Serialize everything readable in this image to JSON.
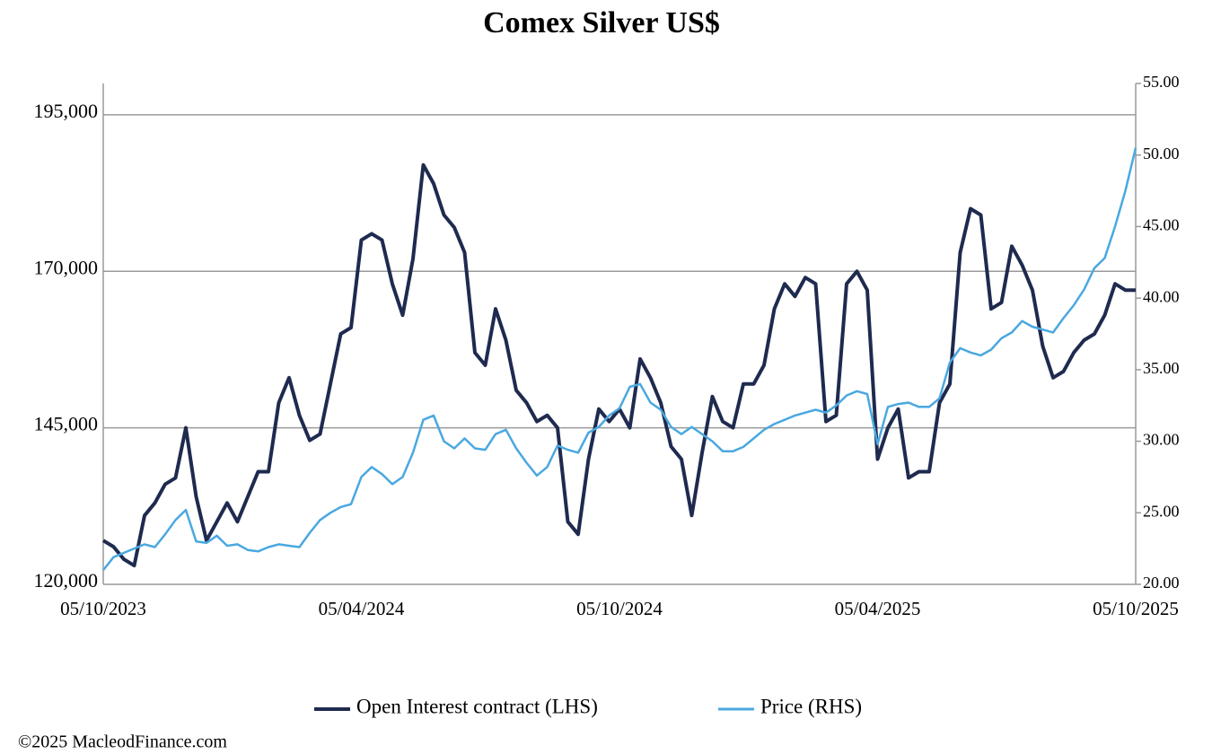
{
  "chart_data": {
    "type": "line",
    "title": "Comex Silver US$",
    "categories": [
      "05/10/2023",
      null,
      null,
      null,
      null,
      null,
      null,
      null,
      null,
      null,
      null,
      null,
      null,
      null,
      null,
      null,
      null,
      null,
      null,
      null,
      null,
      null,
      null,
      null,
      null,
      "05/04/2024",
      null,
      null,
      null,
      null,
      null,
      null,
      null,
      null,
      null,
      null,
      null,
      null,
      null,
      null,
      null,
      null,
      null,
      null,
      null,
      null,
      null,
      null,
      null,
      null,
      "05/10/2024",
      null,
      null,
      null,
      null,
      null,
      null,
      null,
      null,
      null,
      null,
      null,
      null,
      null,
      null,
      null,
      null,
      null,
      null,
      null,
      null,
      null,
      null,
      null,
      null,
      "05/04/2025",
      null,
      null,
      null,
      null,
      null,
      null,
      null,
      null,
      null,
      null,
      null,
      null,
      null,
      null,
      null,
      null,
      null,
      null,
      null,
      null,
      null,
      null,
      null,
      null,
      "05/10/2025"
    ],
    "series": [
      {
        "name": "Open Interest contract (LHS)",
        "color": "#1f2a4f",
        "axis": "y",
        "values": [
          127000,
          126000,
          124000,
          123000,
          131000,
          133000,
          136000,
          137000,
          145000,
          134000,
          127000,
          130000,
          133000,
          130000,
          134000,
          138000,
          138000,
          149000,
          153000,
          147000,
          143000,
          144000,
          152000,
          160000,
          161000,
          175000,
          176000,
          175000,
          168000,
          163000,
          172000,
          187000,
          184000,
          179000,
          177000,
          173000,
          157000,
          155000,
          164000,
          159000,
          151000,
          149000,
          146000,
          147000,
          145000,
          130000,
          128000,
          140000,
          148000,
          146000,
          148000,
          145000,
          156000,
          153000,
          149000,
          142000,
          140000,
          131000,
          141000,
          150000,
          146000,
          145000,
          152000,
          152000,
          155000,
          164000,
          168000,
          166000,
          169000,
          168000,
          146000,
          147000,
          168000,
          170000,
          167000,
          140000,
          145000,
          148000,
          137000,
          138000,
          138000,
          149000,
          152000,
          173000,
          180000,
          179000,
          164000,
          165000,
          174000,
          171000,
          167000,
          158000,
          153000,
          154000,
          157000,
          159000,
          160000,
          163000,
          168000,
          167000,
          167000
        ]
      },
      {
        "name": "Price (RHS)",
        "color": "#4aa8e0",
        "axis": "y2",
        "values": [
          21,
          21.9,
          22.2,
          22.5,
          22.8,
          22.6,
          23.5,
          24.5,
          25.2,
          23,
          22.9,
          23.4,
          22.7,
          22.8,
          22.4,
          22.3,
          22.6,
          22.8,
          22.7,
          22.6,
          23.6,
          24.5,
          25,
          25.4,
          25.6,
          27.5,
          28.2,
          27.7,
          27,
          27.5,
          29.2,
          31.5,
          31.8,
          30,
          29.5,
          30.2,
          29.5,
          29.4,
          30.5,
          30.8,
          29.5,
          28.5,
          27.6,
          28.2,
          29.7,
          29.4,
          29.2,
          30.6,
          31,
          31.8,
          32.3,
          33.8,
          34,
          32.7,
          32.2,
          31,
          30.5,
          31,
          30.5,
          30,
          29.3,
          29.3,
          29.6,
          30.2,
          30.8,
          31.2,
          31.5,
          31.8,
          32,
          32.2,
          32,
          32.5,
          33.2,
          33.5,
          33.3,
          29.8,
          32.4,
          32.6,
          32.7,
          32.4,
          32.4,
          33,
          35.5,
          36.5,
          36.2,
          36,
          36.4,
          37.2,
          37.6,
          38.4,
          38,
          37.8,
          37.6,
          38.6,
          39.5,
          40.6,
          42.1,
          42.8,
          45,
          47.5,
          50.5
        ]
      }
    ],
    "ylim": [
      120000,
      200000
    ],
    "yticks": [
      {
        "value": 120000,
        "label": "120,000"
      },
      {
        "value": 145000,
        "label": "145,000"
      },
      {
        "value": 170000,
        "label": "170,000"
      },
      {
        "value": 195000,
        "label": "195,000"
      }
    ],
    "y2lim": [
      20,
      55
    ],
    "y2ticks": [
      {
        "value": 20,
        "label": "20.00"
      },
      {
        "value": 25,
        "label": "25.00"
      },
      {
        "value": 30,
        "label": "30.00"
      },
      {
        "value": 35,
        "label": "35.00"
      },
      {
        "value": 40,
        "label": "40.00"
      },
      {
        "value": 45,
        "label": "45.00"
      },
      {
        "value": 50,
        "label": "50.00"
      },
      {
        "value": 55,
        "label": "55.00"
      }
    ],
    "grid": true,
    "legend": "bottom",
    "source": "©2025 MacleodFinance.com"
  }
}
